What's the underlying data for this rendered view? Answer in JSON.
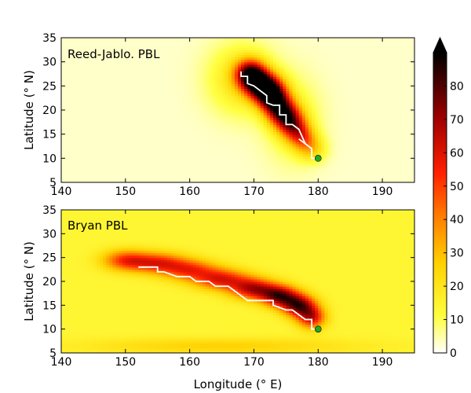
{
  "figure": {
    "shared_xlabel": "Longitude (° E)"
  },
  "chart_data": [
    {
      "type": "heatmap",
      "title": "",
      "panel_label": "Reed-Jablo. PBL",
      "xlabel": "",
      "ylabel": "Latitude (° N)",
      "xlim": [
        140,
        195
      ],
      "ylim": [
        5,
        35
      ],
      "xticks": [
        "140",
        "150",
        "160",
        "170",
        "180",
        "190"
      ],
      "yticks": [
        "5",
        "10",
        "15",
        "20",
        "25",
        "30",
        "35"
      ],
      "background_value": 3,
      "blobs": [
        {
          "x": 169.5,
          "y": 27.5,
          "sx": 1.6,
          "sy": 2.0,
          "v": 75
        },
        {
          "x": 171.5,
          "y": 25.0,
          "sx": 1.8,
          "sy": 2.0,
          "v": 80
        },
        {
          "x": 173.0,
          "y": 22.5,
          "sx": 1.6,
          "sy": 2.0,
          "v": 72
        },
        {
          "x": 174.5,
          "y": 19.5,
          "sx": 1.6,
          "sy": 2.0,
          "v": 60
        },
        {
          "x": 176.0,
          "y": 17.0,
          "sx": 1.5,
          "sy": 2.0,
          "v": 45
        },
        {
          "x": 177.5,
          "y": 14.5,
          "sx": 1.4,
          "sy": 1.8,
          "v": 32
        },
        {
          "x": 179.0,
          "y": 12.0,
          "sx": 1.5,
          "sy": 1.8,
          "v": 20
        },
        {
          "x": 168.0,
          "y": 26.5,
          "sx": 3.5,
          "sy": 5.0,
          "v": 18
        },
        {
          "x": 176.0,
          "y": 18.0,
          "sx": 3.0,
          "sy": 6.0,
          "v": 12
        }
      ],
      "track": [
        [
          180.0,
          10.0
        ],
        [
          179.0,
          10.0
        ],
        [
          179.0,
          12.0
        ],
        [
          178.0,
          13.0
        ],
        [
          177.0,
          14.0
        ],
        [
          178.0,
          13.0
        ],
        [
          177.0,
          16.0
        ],
        [
          176.0,
          17.0
        ],
        [
          175.0,
          17.0
        ],
        [
          175.0,
          19.0
        ],
        [
          174.0,
          19.0
        ],
        [
          174.0,
          21.0
        ],
        [
          173.0,
          21.0
        ],
        [
          172.0,
          21.5
        ],
        [
          172.0,
          23.0
        ],
        [
          171.0,
          24.0
        ],
        [
          170.0,
          25.0
        ],
        [
          169.0,
          25.5
        ],
        [
          169.0,
          27.0
        ],
        [
          168.0,
          27.0
        ],
        [
          168.0,
          28.0
        ]
      ],
      "start_point": [
        180.0,
        10.0
      ],
      "colors": {
        "track": "#ffffff",
        "start_point": "#22aa22"
      }
    },
    {
      "type": "heatmap",
      "title": "",
      "panel_label": "Bryan PBL",
      "xlabel": "Longitude (° E)",
      "ylabel": "Latitude (° N)",
      "xlim": [
        140,
        195
      ],
      "ylim": [
        5,
        35
      ],
      "xticks": [
        "140",
        "150",
        "160",
        "170",
        "180",
        "190"
      ],
      "yticks": [
        "5",
        "10",
        "15",
        "20",
        "25",
        "30",
        "35"
      ],
      "background_value": 14,
      "blobs": [
        {
          "x": 150.0,
          "y": 24.5,
          "sx": 2.5,
          "sy": 1.5,
          "v": 35
        },
        {
          "x": 155.0,
          "y": 24.0,
          "sx": 3.0,
          "sy": 1.5,
          "v": 38
        },
        {
          "x": 160.0,
          "y": 22.5,
          "sx": 3.0,
          "sy": 1.5,
          "v": 35
        },
        {
          "x": 165.0,
          "y": 20.5,
          "sx": 3.0,
          "sy": 1.5,
          "v": 42
        },
        {
          "x": 170.0,
          "y": 18.5,
          "sx": 2.5,
          "sy": 1.5,
          "v": 50
        },
        {
          "x": 174.0,
          "y": 17.0,
          "sx": 2.0,
          "sy": 1.5,
          "v": 58
        },
        {
          "x": 177.0,
          "y": 15.0,
          "sx": 1.8,
          "sy": 1.6,
          "v": 60
        },
        {
          "x": 179.0,
          "y": 12.5,
          "sx": 1.5,
          "sy": 1.6,
          "v": 45
        },
        {
          "x": 165.0,
          "y": 6.5,
          "sx": 15.0,
          "sy": 1.2,
          "v": 12
        }
      ],
      "track": [
        [
          180.0,
          10.0
        ],
        [
          179.0,
          10.0
        ],
        [
          179.0,
          12.0
        ],
        [
          178.0,
          12.0
        ],
        [
          177.0,
          13.0
        ],
        [
          176.0,
          14.0
        ],
        [
          175.0,
          14.0
        ],
        [
          173.0,
          15.0
        ],
        [
          173.0,
          16.0
        ],
        [
          170.0,
          16.0
        ],
        [
          169.0,
          16.0
        ],
        [
          168.0,
          17.0
        ],
        [
          167.0,
          18.0
        ],
        [
          166.0,
          19.0
        ],
        [
          164.0,
          19.0
        ],
        [
          163.0,
          20.0
        ],
        [
          161.0,
          20.0
        ],
        [
          160.0,
          21.0
        ],
        [
          158.0,
          21.0
        ],
        [
          156.0,
          22.0
        ],
        [
          155.0,
          22.0
        ],
        [
          155.0,
          23.0
        ],
        [
          152.0,
          23.0
        ]
      ],
      "start_point": [
        180.0,
        10.0
      ],
      "colors": {
        "track": "#ffffff",
        "start_point": "#22aa22"
      }
    }
  ],
  "colorbar": {
    "min": 0,
    "max": 90,
    "ticks": [
      "0",
      "10",
      "20",
      "30",
      "40",
      "50",
      "60",
      "70",
      "80"
    ],
    "extend": "max",
    "stops": [
      "#ffffff",
      "#ffff00",
      "#ffa000",
      "#ff0000",
      "#9a0000",
      "#000000"
    ]
  }
}
